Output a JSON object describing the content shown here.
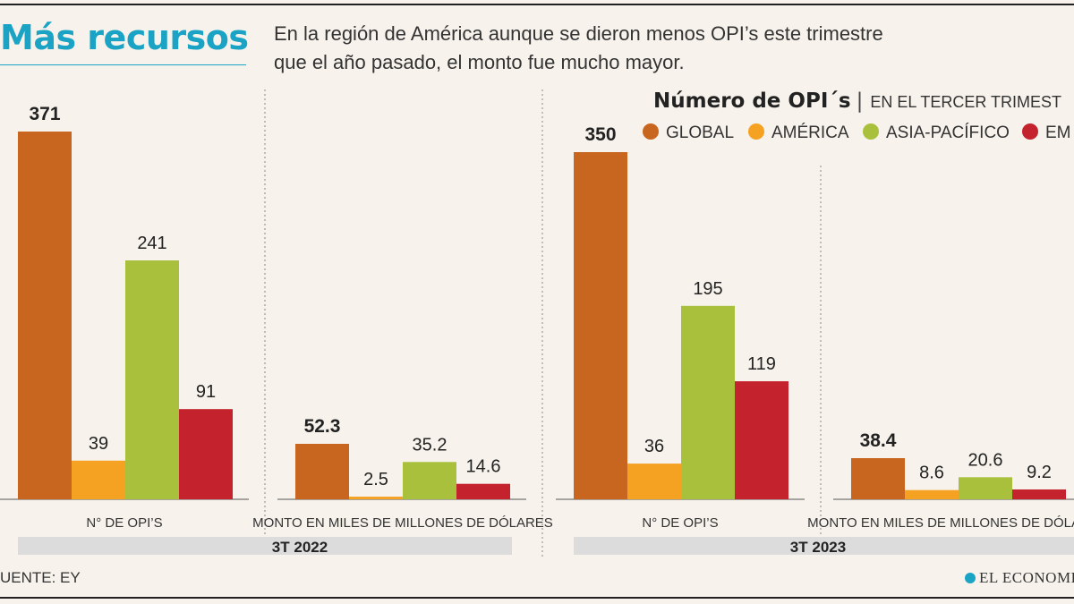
{
  "header": {
    "title": "Más recursos",
    "subtitle": "En la región de América aunque se dieron menos OPI’s este trimestre que el año pasado, el monto fue mucho mayor."
  },
  "legend": {
    "title": "Número de OPI´s",
    "separator": "|",
    "subtitle": "EN EL TERCER TRIMEST",
    "items": [
      {
        "label": "GLOBAL",
        "color": "#c8651f"
      },
      {
        "label": "AMÉRICA",
        "color": "#f5a122"
      },
      {
        "label": "ASIA-PACÍFICO",
        "color": "#a8c03c"
      },
      {
        "label": "EM",
        "color": "#c4232e"
      }
    ]
  },
  "chart_data": [
    {
      "type": "bar",
      "period": "3T 2022",
      "xlabel": "N° DE OPI’S",
      "categories": [
        "GLOBAL",
        "AMÉRICA",
        "ASIA-PACÍFICO",
        "EM"
      ],
      "values": [
        371,
        39,
        241,
        91
      ],
      "labels": [
        "371",
        "39",
        "241",
        "91"
      ]
    },
    {
      "type": "bar",
      "period": "3T 2022",
      "xlabel": "MONTO EN MILES DE MILLONES DE DÓLARES",
      "categories": [
        "GLOBAL",
        "AMÉRICA",
        "ASIA-PACÍFICO",
        "EM"
      ],
      "values": [
        52.3,
        2.5,
        35.2,
        14.6
      ],
      "labels": [
        "52.3",
        "2.5",
        "35.2",
        "14.6"
      ]
    },
    {
      "type": "bar",
      "period": "3T 2023",
      "xlabel": "N° DE OPI’S",
      "categories": [
        "GLOBAL",
        "AMÉRICA",
        "ASIA-PACÍFICO",
        "EM"
      ],
      "values": [
        350,
        36,
        195,
        119
      ],
      "labels": [
        "350",
        "36",
        "195",
        "119"
      ]
    },
    {
      "type": "bar",
      "period": "3T 2023",
      "xlabel": "MONTO EN MILES DE MILLONES DE DÓLARES",
      "categories": [
        "GLOBAL",
        "AMÉRICA",
        "ASIA-PACÍFICO",
        "EM"
      ],
      "values": [
        38.4,
        8.6,
        20.6,
        9.2
      ],
      "labels": [
        "38.4",
        "8.6",
        "20.6",
        "9.2"
      ]
    }
  ],
  "periods": [
    "3T 2022",
    "3T 2023"
  ],
  "footer": {
    "source": "UENTE: EY",
    "brand": "EL ECONOMIS"
  }
}
